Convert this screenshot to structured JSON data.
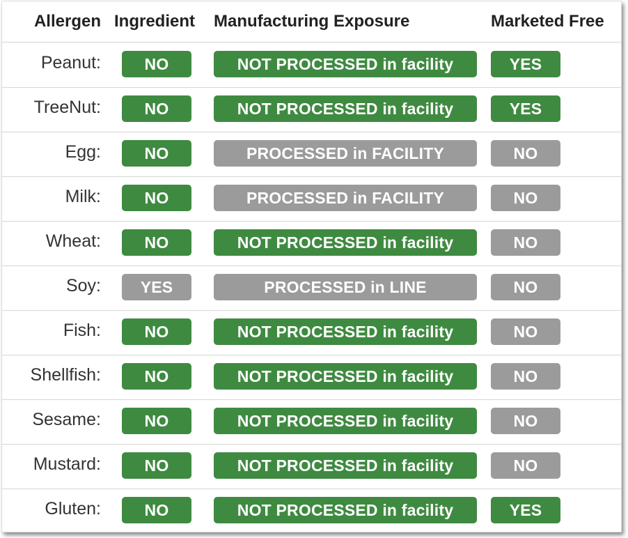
{
  "headers": {
    "allergen": "Allergen",
    "ingredient": "Ingredient",
    "exposure": "Manufacturing Exposure",
    "marketed_free": "Marketed Free"
  },
  "status_colors": {
    "good": "#3f8a41",
    "bad": "#9b9b9b"
  },
  "rows": [
    {
      "allergen": "Peanut:",
      "ingredient": "NO",
      "ingredient_status": "good",
      "exposure": "NOT PROCESSED in facility",
      "exposure_status": "good",
      "marketed_free": "YES",
      "marketed_status": "good"
    },
    {
      "allergen": "TreeNut:",
      "ingredient": "NO",
      "ingredient_status": "good",
      "exposure": "NOT PROCESSED in facility",
      "exposure_status": "good",
      "marketed_free": "YES",
      "marketed_status": "good"
    },
    {
      "allergen": "Egg:",
      "ingredient": "NO",
      "ingredient_status": "good",
      "exposure": "PROCESSED in FACILITY",
      "exposure_status": "bad",
      "marketed_free": "NO",
      "marketed_status": "bad"
    },
    {
      "allergen": "Milk:",
      "ingredient": "NO",
      "ingredient_status": "good",
      "exposure": "PROCESSED in FACILITY",
      "exposure_status": "bad",
      "marketed_free": "NO",
      "marketed_status": "bad"
    },
    {
      "allergen": "Wheat:",
      "ingredient": "NO",
      "ingredient_status": "good",
      "exposure": "NOT PROCESSED in facility",
      "exposure_status": "good",
      "marketed_free": "NO",
      "marketed_status": "bad"
    },
    {
      "allergen": "Soy:",
      "ingredient": "YES",
      "ingredient_status": "bad",
      "exposure": "PROCESSED in LINE",
      "exposure_status": "bad",
      "marketed_free": "NO",
      "marketed_status": "bad"
    },
    {
      "allergen": "Fish:",
      "ingredient": "NO",
      "ingredient_status": "good",
      "exposure": "NOT PROCESSED in facility",
      "exposure_status": "good",
      "marketed_free": "NO",
      "marketed_status": "bad"
    },
    {
      "allergen": "Shellfish:",
      "ingredient": "NO",
      "ingredient_status": "good",
      "exposure": "NOT PROCESSED in facility",
      "exposure_status": "good",
      "marketed_free": "NO",
      "marketed_status": "bad"
    },
    {
      "allergen": "Sesame:",
      "ingredient": "NO",
      "ingredient_status": "good",
      "exposure": "NOT PROCESSED in facility",
      "exposure_status": "good",
      "marketed_free": "NO",
      "marketed_status": "bad"
    },
    {
      "allergen": "Mustard:",
      "ingredient": "NO",
      "ingredient_status": "good",
      "exposure": "NOT PROCESSED in facility",
      "exposure_status": "good",
      "marketed_free": "NO",
      "marketed_status": "bad"
    },
    {
      "allergen": "Gluten:",
      "ingredient": "NO",
      "ingredient_status": "good",
      "exposure": "NOT PROCESSED in facility",
      "exposure_status": "good",
      "marketed_free": "YES",
      "marketed_status": "good"
    }
  ]
}
